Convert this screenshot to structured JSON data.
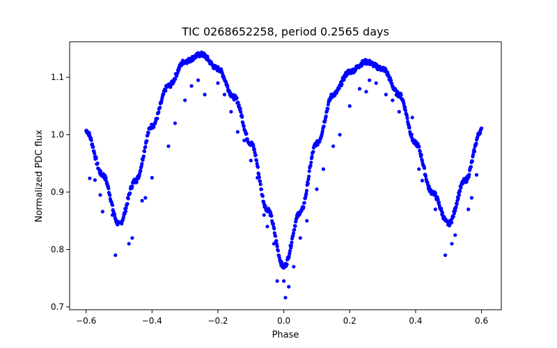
{
  "chart_data": {
    "type": "scatter",
    "title": "TIC 0268652258, period 0.2565 days",
    "xlabel": "Phase",
    "ylabel": "Normalized PDC flux",
    "xlim": [
      -0.65,
      0.66
    ],
    "ylim": [
      0.695,
      1.162
    ],
    "x_ticks": [
      -0.6,
      -0.4,
      -0.2,
      0.0,
      0.2,
      0.4,
      0.6
    ],
    "x_tick_labels": [
      "−0.6",
      "−0.4",
      "−0.2",
      "0.0",
      "0.2",
      "0.4",
      "0.6"
    ],
    "y_ticks": [
      0.7,
      0.8,
      0.9,
      1.0,
      1.1
    ],
    "y_tick_labels": [
      "0.7",
      "0.8",
      "0.9",
      "1.0",
      "1.1"
    ],
    "grid": false,
    "legend": "none",
    "marker_color": "#0000ff",
    "model": {
      "description_points": [
        [
          -0.6,
          1.007
        ],
        [
          -0.55,
          0.93
        ],
        [
          -0.5,
          0.844
        ],
        [
          -0.45,
          0.92
        ],
        [
          -0.4,
          1.015
        ],
        [
          -0.35,
          1.085
        ],
        [
          -0.3,
          1.128
        ],
        [
          -0.25,
          1.14
        ],
        [
          -0.2,
          1.115
        ],
        [
          -0.15,
          1.065
        ],
        [
          -0.1,
          0.985
        ],
        [
          -0.05,
          0.87
        ],
        [
          0.0,
          0.77
        ],
        [
          0.05,
          0.865
        ],
        [
          0.1,
          0.985
        ],
        [
          0.15,
          1.07
        ],
        [
          0.2,
          1.11
        ],
        [
          0.25,
          1.127
        ],
        [
          0.3,
          1.115
        ],
        [
          0.35,
          1.07
        ],
        [
          0.4,
          0.985
        ],
        [
          0.45,
          0.9
        ],
        [
          0.5,
          0.845
        ],
        [
          0.55,
          0.92
        ],
        [
          0.6,
          1.008
        ]
      ]
    },
    "outliers": [
      [
        -0.589,
        0.924
      ],
      [
        -0.573,
        0.921
      ],
      [
        -0.557,
        0.895
      ],
      [
        -0.55,
        0.866
      ],
      [
        -0.52,
        0.86
      ],
      [
        -0.511,
        0.79
      ],
      [
        -0.47,
        0.81
      ],
      [
        -0.46,
        0.82
      ],
      [
        -0.43,
        0.885
      ],
      [
        -0.42,
        0.89
      ],
      [
        -0.4,
        0.925
      ],
      [
        -0.35,
        0.98
      ],
      [
        -0.33,
        1.02
      ],
      [
        -0.3,
        1.06
      ],
      [
        -0.28,
        1.085
      ],
      [
        -0.26,
        1.095
      ],
      [
        -0.24,
        1.07
      ],
      [
        -0.2,
        1.09
      ],
      [
        -0.18,
        1.07
      ],
      [
        -0.16,
        1.04
      ],
      [
        -0.14,
        1.005
      ],
      [
        -0.12,
        0.99
      ],
      [
        -0.1,
        0.955
      ],
      [
        -0.08,
        0.925
      ],
      [
        -0.06,
        0.86
      ],
      [
        -0.05,
        0.84
      ],
      [
        -0.03,
        0.81
      ],
      [
        -0.02,
        0.745
      ],
      [
        0.0,
        0.745
      ],
      [
        0.005,
        0.716
      ],
      [
        0.015,
        0.735
      ],
      [
        0.03,
        0.77
      ],
      [
        0.05,
        0.82
      ],
      [
        0.07,
        0.85
      ],
      [
        0.1,
        0.905
      ],
      [
        0.12,
        0.94
      ],
      [
        0.15,
        0.98
      ],
      [
        0.17,
        1.0
      ],
      [
        0.2,
        1.05
      ],
      [
        0.23,
        1.08
      ],
      [
        0.25,
        1.075
      ],
      [
        0.26,
        1.095
      ],
      [
        0.28,
        1.09
      ],
      [
        0.31,
        1.07
      ],
      [
        0.33,
        1.06
      ],
      [
        0.35,
        1.04
      ],
      [
        0.38,
        1.015
      ],
      [
        0.39,
        1.03
      ],
      [
        0.41,
        0.94
      ],
      [
        0.42,
        0.92
      ],
      [
        0.44,
        0.905
      ],
      [
        0.46,
        0.87
      ],
      [
        0.49,
        0.79
      ],
      [
        0.51,
        0.81
      ],
      [
        0.52,
        0.825
      ],
      [
        0.56,
        0.87
      ],
      [
        0.57,
        0.89
      ],
      [
        0.585,
        0.93
      ]
    ]
  }
}
